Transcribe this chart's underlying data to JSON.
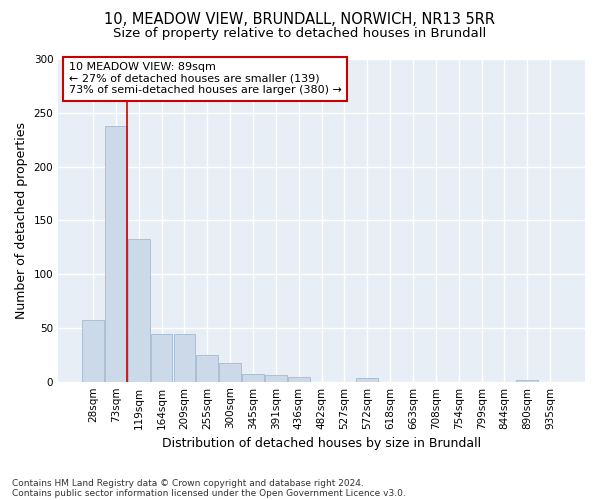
{
  "title_line1": "10, MEADOW VIEW, BRUNDALL, NORWICH, NR13 5RR",
  "title_line2": "Size of property relative to detached houses in Brundall",
  "xlabel": "Distribution of detached houses by size in Brundall",
  "ylabel": "Number of detached properties",
  "categories": [
    "28sqm",
    "73sqm",
    "119sqm",
    "164sqm",
    "209sqm",
    "255sqm",
    "300sqm",
    "345sqm",
    "391sqm",
    "436sqm",
    "482sqm",
    "527sqm",
    "572sqm",
    "618sqm",
    "663sqm",
    "708sqm",
    "754sqm",
    "799sqm",
    "844sqm",
    "890sqm",
    "935sqm"
  ],
  "values": [
    57,
    238,
    133,
    44,
    44,
    25,
    17,
    7,
    6,
    4,
    0,
    0,
    3,
    0,
    0,
    0,
    0,
    0,
    0,
    2,
    0
  ],
  "bar_color": "#ccd9e8",
  "bar_edge_color": "#9ab0c8",
  "vline_x": 1.5,
  "vline_color": "#cc0000",
  "annotation_text": "10 MEADOW VIEW: 89sqm\n← 27% of detached houses are smaller (139)\n73% of semi-detached houses are larger (380) →",
  "annotation_box_facecolor": "#ffffff",
  "annotation_box_edgecolor": "#cc0000",
  "ylim": [
    0,
    300
  ],
  "yticks": [
    0,
    50,
    100,
    150,
    200,
    250,
    300
  ],
  "fig_facecolor": "#ffffff",
  "plot_facecolor": "#e8eef5",
  "grid_color": "#ffffff",
  "footer_line1": "Contains HM Land Registry data © Crown copyright and database right 2024.",
  "footer_line2": "Contains public sector information licensed under the Open Government Licence v3.0.",
  "title_fontsize": 10.5,
  "subtitle_fontsize": 9.5,
  "ylabel_fontsize": 9,
  "xlabel_fontsize": 9,
  "tick_fontsize": 7.5,
  "annotation_fontsize": 8,
  "footer_fontsize": 6.5
}
